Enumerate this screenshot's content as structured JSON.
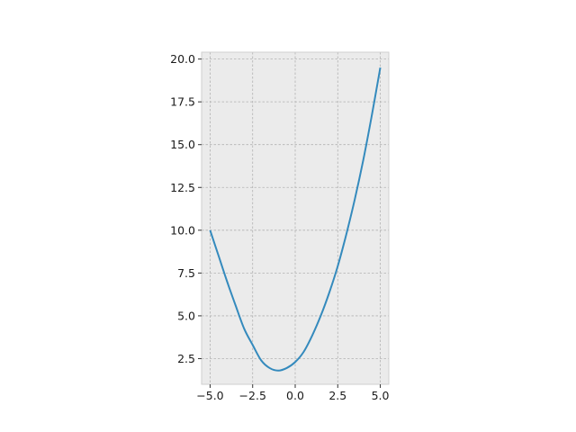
{
  "chart_data": {
    "type": "line",
    "title": "",
    "xlabel": "",
    "ylabel": "",
    "xlim": [
      -5.5,
      5.5
    ],
    "ylim": [
      1.0,
      20.4
    ],
    "grid": true,
    "x_ticks": [
      -5.0,
      -2.5,
      0.0,
      2.5,
      5.0
    ],
    "x_tick_labels": [
      "−5.0",
      "−2.5",
      "0.0",
      "2.5",
      "5.0"
    ],
    "y_ticks": [
      2.5,
      5.0,
      7.5,
      10.0,
      12.5,
      15.0,
      17.5,
      20.0
    ],
    "y_tick_labels": [
      "2.5",
      "5.0",
      "7.5",
      "10.0",
      "12.5",
      "15.0",
      "17.5",
      "20.0"
    ],
    "series": [
      {
        "color": "#348abd",
        "x": [
          -5.0,
          -4.5,
          -4.0,
          -3.5,
          -3.0,
          -2.5,
          -2.0,
          -1.5,
          -1.0,
          -0.5,
          0.0,
          0.5,
          1.0,
          1.5,
          2.0,
          2.5,
          3.0,
          3.5,
          4.0,
          4.5,
          5.0
        ],
        "y": [
          10.0,
          8.5,
          7.0,
          5.6,
          4.25,
          3.3,
          2.4,
          1.95,
          1.8,
          1.95,
          2.3,
          2.9,
          3.85,
          5.0,
          6.35,
          7.9,
          9.75,
          11.8,
          14.1,
          16.7,
          19.5
        ]
      }
    ]
  }
}
